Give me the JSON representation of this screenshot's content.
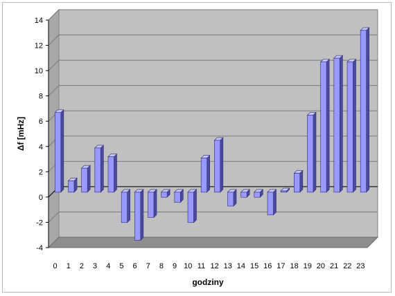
{
  "chart_data": {
    "type": "bar",
    "title": "",
    "xlabel": "godziny",
    "ylabel": "Δf [mHz]",
    "ylim": [
      -4,
      14
    ],
    "y_ticks": [
      "-4",
      "-2",
      "0",
      "2",
      "4",
      "6",
      "8",
      "10",
      "12",
      "14"
    ],
    "grid": true,
    "legend": "none",
    "categories": [
      "0",
      "1",
      "2",
      "3",
      "4",
      "5",
      "6",
      "7",
      "8",
      "9",
      "10",
      "11",
      "12",
      "13",
      "14",
      "15",
      "16",
      "17",
      "18",
      "19",
      "20",
      "21",
      "22",
      "23"
    ],
    "values": [
      6.3,
      0.9,
      1.9,
      3.5,
      2.8,
      -2.4,
      -3.8,
      -2.0,
      -0.4,
      -0.8,
      -2.4,
      2.7,
      4.1,
      -1.1,
      -0.4,
      -0.4,
      -1.8,
      0.1,
      1.5,
      6.1,
      10.3,
      10.6,
      10.3,
      12.8
    ],
    "colors": {
      "bar_front": "#9999ff",
      "bar_side": "#4b4b9e",
      "bar_top": "#c4c4ff",
      "bar_edge": "#2c2c6e",
      "back_wall": "#c0c0c0",
      "side_wall": "#a8a8a8",
      "floor": "#8e8e8e",
      "gridline": "#7a7a7a",
      "zero_line": "#000000"
    }
  }
}
